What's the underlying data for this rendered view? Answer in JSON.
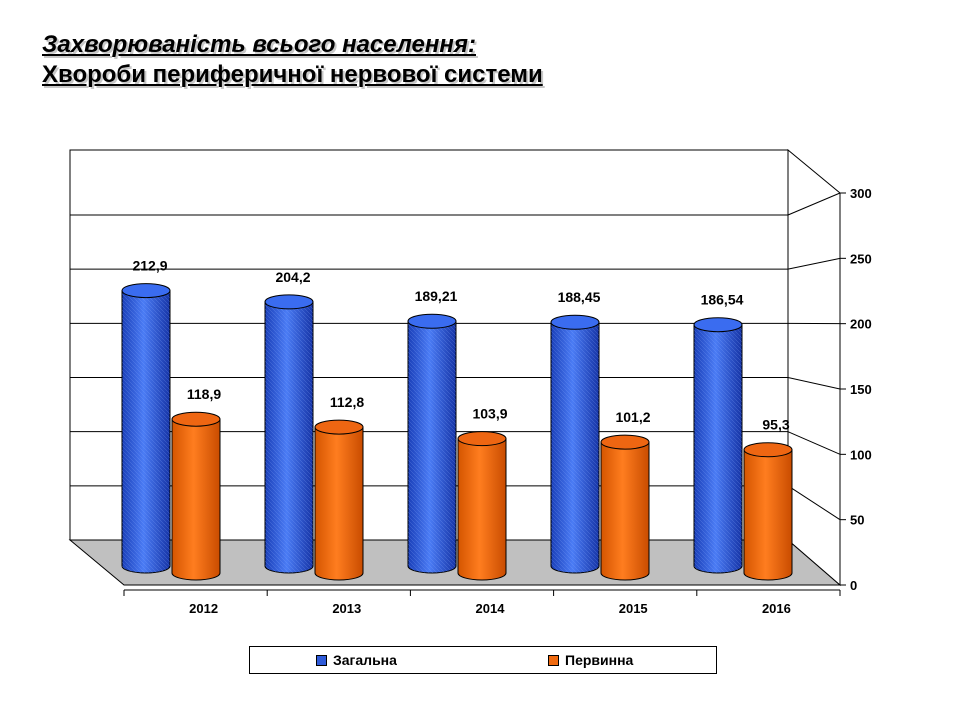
{
  "title": {
    "line1": "Захворюваність всього населення:",
    "line2": "Хвороби периферичної нервової системи"
  },
  "chart_data": {
    "type": "bar",
    "categories": [
      "2012",
      "2013",
      "2014",
      "2015",
      "2016"
    ],
    "series": [
      {
        "name": "Загальна",
        "values": [
          212.9,
          204.2,
          189.21,
          188.45,
          186.54
        ],
        "labels": [
          "212,9",
          "204,2",
          "189,21",
          "188,45",
          "186,54"
        ],
        "color": "#2f5bd9"
      },
      {
        "name": "Первинна",
        "values": [
          118.9,
          112.8,
          103.9,
          101.2,
          95.3
        ],
        "labels": [
          "118,9",
          "112,8",
          "103,9",
          "101,2",
          "95,3"
        ],
        "color": "#f06a10"
      }
    ],
    "yticks": [
      "0",
      "50",
      "100",
      "150",
      "200",
      "250",
      "300"
    ],
    "ylim": [
      0,
      300
    ],
    "grid": true,
    "legend_position": "bottom"
  }
}
